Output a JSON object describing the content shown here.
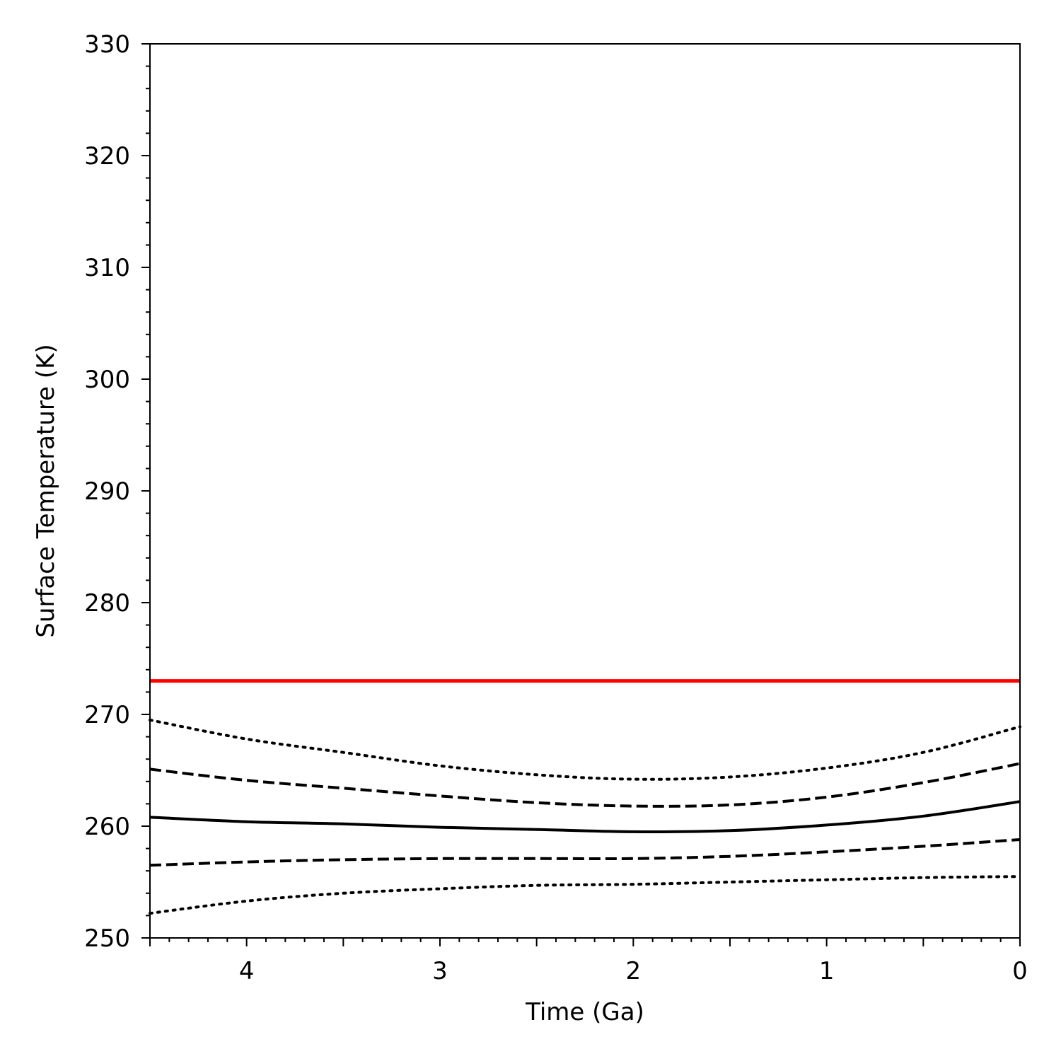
{
  "chart_data": {
    "type": "line",
    "title": "",
    "xlabel": "Time (Ga)",
    "ylabel": "Surface Temperature (K)",
    "xlim": [
      4.5,
      0
    ],
    "ylim": [
      250,
      330
    ],
    "x_reversed": true,
    "xticks": [
      4,
      3,
      2,
      1,
      0
    ],
    "xtick_labels": [
      "4",
      "3",
      "2",
      "1",
      "0"
    ],
    "x_minor_step": 0.1,
    "yticks": [
      250,
      260,
      270,
      280,
      290,
      300,
      310,
      320,
      330
    ],
    "ytick_labels": [
      "250",
      "260",
      "270",
      "280",
      "290",
      "300",
      "310",
      "320",
      "330"
    ],
    "y_minor_step": 2,
    "grid": false,
    "x": [
      4.5,
      4.0,
      3.5,
      3.0,
      2.5,
      2.0,
      1.5,
      1.0,
      0.5,
      0.0
    ],
    "series": [
      {
        "style": "solid",
        "color": "#ff0000",
        "values": [
          273,
          273,
          273,
          273,
          273,
          273,
          273,
          273,
          273,
          273
        ]
      },
      {
        "style": "dotted",
        "color": "#000000",
        "values": [
          269.5,
          267.8,
          266.6,
          265.4,
          264.6,
          264.2,
          264.4,
          265.2,
          266.6,
          268.9
        ]
      },
      {
        "style": "dashed",
        "color": "#000000",
        "values": [
          265.1,
          264.1,
          263.4,
          262.7,
          262.1,
          261.8,
          261.9,
          262.6,
          263.9,
          265.6
        ]
      },
      {
        "style": "solid",
        "color": "#000000",
        "values": [
          260.8,
          260.4,
          260.2,
          259.9,
          259.7,
          259.5,
          259.6,
          260.1,
          260.9,
          262.2
        ]
      },
      {
        "style": "dashed",
        "color": "#000000",
        "values": [
          256.5,
          256.8,
          257.0,
          257.1,
          257.1,
          257.1,
          257.3,
          257.7,
          258.2,
          258.8
        ]
      },
      {
        "style": "dotted",
        "color": "#000000",
        "values": [
          252.2,
          253.3,
          254.0,
          254.4,
          254.7,
          254.8,
          255.0,
          255.2,
          255.4,
          255.5
        ]
      }
    ]
  }
}
